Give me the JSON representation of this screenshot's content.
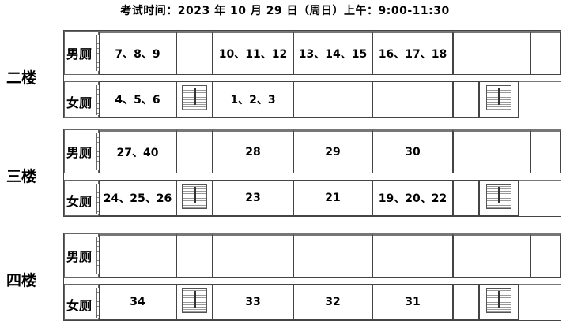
{
  "title": "考试时间：2023 年   10 月 29  日（周日）上午：9:00-11:30",
  "floors": [
    {
      "label": "二楼",
      "mens": "男厕",
      "womens": "女厕",
      "top": [
        "7、8、9",
        "",
        "10、11、12",
        "13、14、15",
        "16、17、18",
        "",
        ""
      ],
      "bottom": [
        "4、5、6",
        "1、2、3",
        "",
        "",
        ""
      ]
    },
    {
      "label": "三楼",
      "mens": "男厕",
      "womens": "女厕",
      "top": [
        "27、40",
        "",
        "28",
        "29",
        "30",
        "",
        ""
      ],
      "bottom": [
        "24、25、26",
        "23",
        "21",
        "19、20、22",
        ""
      ]
    },
    {
      "label": "四楼",
      "mens": "男厕",
      "womens": "女厕",
      "top": [
        "",
        "",
        "",
        "",
        "",
        "",
        ""
      ],
      "bottom": [
        "34",
        "33",
        "32",
        "31",
        ""
      ]
    }
  ]
}
